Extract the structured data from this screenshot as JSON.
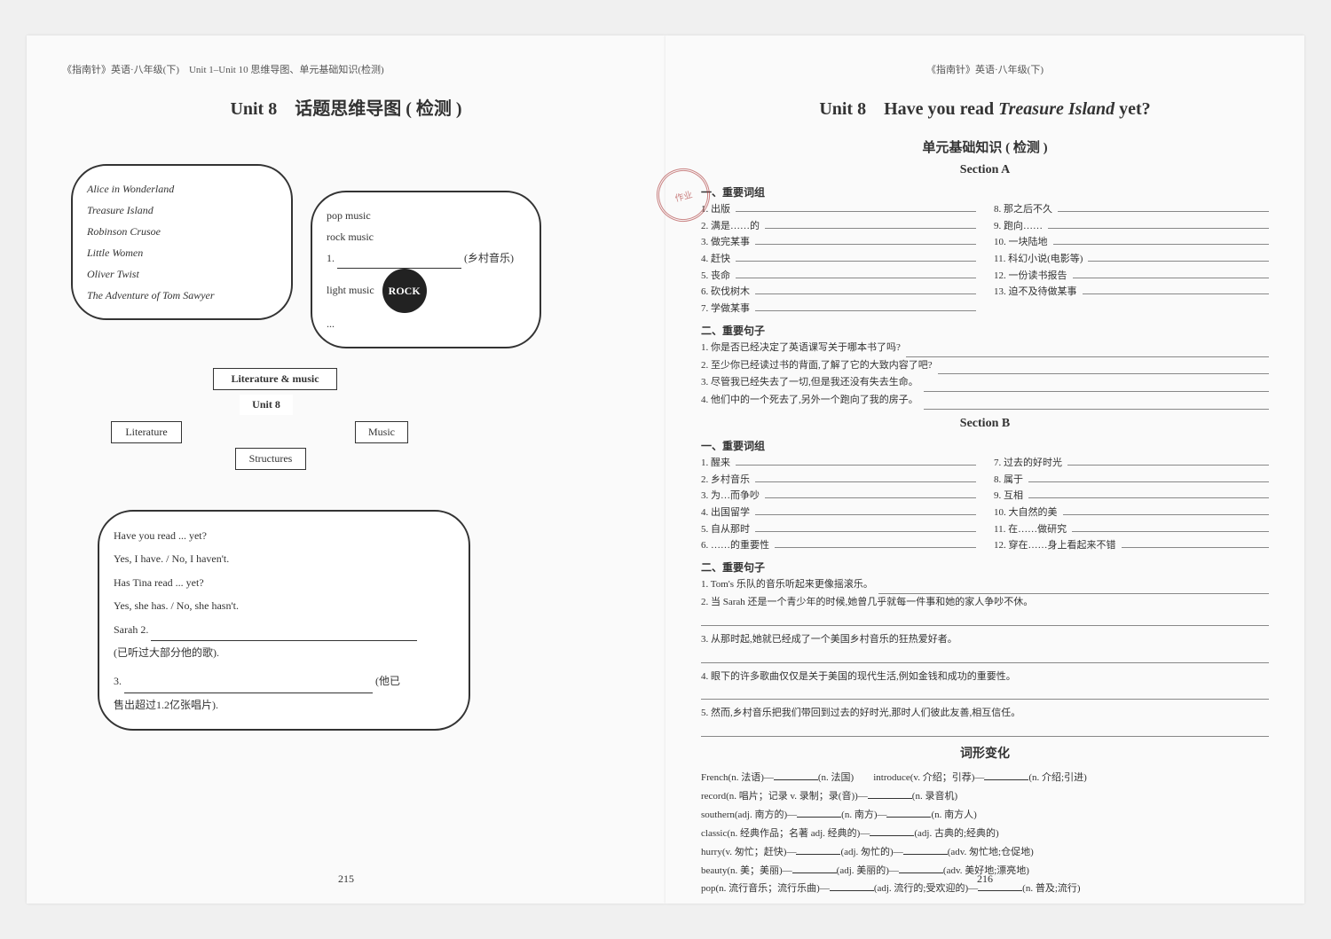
{
  "left": {
    "header": "《指南针》英语·八年级(下)　Unit 1–Unit 10 思维导图、单元基础知识(检测)",
    "title": "Unit 8　话题思维导图 ( 检测 )",
    "books": [
      "Alice in Wonderland",
      "Treasure Island",
      "Robinson Crusoe",
      "Little Women",
      "Oliver Twist",
      "The Adventure of Tom Sawyer"
    ],
    "music": {
      "items": [
        "pop music",
        "rock music"
      ],
      "blank_label": "1.",
      "blank_hint": "(乡村音乐)",
      "tail": [
        "light music",
        "..."
      ]
    },
    "center": {
      "litmusic": "Literature & music",
      "unit": "Unit 8",
      "literature": "Literature",
      "music": "Music",
      "structures": "Structures"
    },
    "sentences": {
      "lines": [
        "Have you read ... yet?",
        "Yes, I have. / No, I haven't.",
        "Has Tina read ... yet?",
        "Yes, she has. / No, she hasn't."
      ],
      "blank2_label": "Sarah 2.",
      "blank2_hint": "(已听过大部分他的歌).",
      "blank3_label": "3.",
      "blank3_hint": "(他已",
      "blank3_cont": "售出超过1.2亿张唱片)."
    },
    "rock_label": "ROCK",
    "page_num": "215"
  },
  "right": {
    "header": "《指南针》英语·八年级(下)",
    "title_pre": "Unit 8　Have you read ",
    "title_italic": "Treasure Island",
    "title_post": " yet?",
    "subtitle": "单元基础知识 ( 检测 )",
    "stamp": "作业",
    "sectionA": {
      "title": "Section A",
      "phrases_head": "一、重要词组",
      "left_items": [
        "1. 出版",
        "2. 满是……的",
        "3. 做完某事",
        "4. 赶快",
        "5. 丧命",
        "6. 砍伐树木",
        "7. 学做某事"
      ],
      "right_items": [
        "8. 那之后不久",
        "9. 跑向……",
        "10. 一块陆地",
        "11. 科幻小说(电影等)",
        "12. 一份读书报告",
        "13. 迫不及待做某事"
      ],
      "sent_head": "二、重要句子",
      "sentences": [
        "1. 你是否已经决定了英语课写关于哪本书了吗?",
        "2. 至少你已经读过书的背面,了解了它的大致内容了吧?",
        "3. 尽管我已经失去了一切,但是我还没有失去生命。",
        "4. 他们中的一个死去了,另外一个跑向了我的房子。"
      ]
    },
    "sectionB": {
      "title": "Section B",
      "phrases_head": "一、重要词组",
      "left_items": [
        "1. 醒来",
        "2. 乡村音乐",
        "3. 为…而争吵",
        "4. 出国留学",
        "5. 自从那时",
        "6. ……的重要性"
      ],
      "right_items": [
        "7. 过去的好时光",
        "8. 属于",
        "9. 互相",
        "10. 大自然的美",
        "11. 在……做研究",
        "12. 穿在……身上看起来不错"
      ],
      "sent_head": "二、重要句子",
      "sentences": [
        "1. Tom's 乐队的音乐听起来更像摇滚乐。",
        "2. 当 Sarah 还是一个青少年的时候,她曾几乎就每一件事和她的家人争吵不休。",
        "3. 从那时起,她就已经成了一个美国乡村音乐的狂热爱好者。",
        "4. 眼下的许多歌曲仅仅是关于美国的现代生活,例如金钱和成功的重要性。",
        "5. 然而,乡村音乐把我们带回到过去的好时光,那时人们彼此友善,相互信任。"
      ]
    },
    "wordforms": {
      "title": "词形变化",
      "lines": [
        {
          "pre": "French(n. 法语)—",
          "post": "(n. 法国)",
          "extra_pre": "introduce(v. 介绍；引荐)—",
          "extra_post": "(n. 介绍;引进)"
        },
        {
          "pre": "record(n. 唱片；记录 v. 录制；录(音))—",
          "post": "(n. 录音机)"
        },
        {
          "pre": "southern(adj. 南方的)—",
          "post": "(n. 南方)—",
          "extra_post": "(n. 南方人)"
        },
        {
          "pre": "classic(n. 经典作品；名著 adj. 经典的)—",
          "post": "(adj. 古典的;经典的)"
        },
        {
          "pre": "hurry(v. 匆忙；赶快)—",
          "post": "(adj. 匆忙的)—",
          "extra_post": "(adv. 匆忙地;仓促地)"
        },
        {
          "pre": "beauty(n. 美；美丽)—",
          "post": "(adj. 美丽的)—",
          "extra_post": "(adv. 美好地;漂亮地)"
        },
        {
          "pre": "pop(n. 流行音乐；流行乐曲)—",
          "post": "(adj. 流行的;受欢迎的)—",
          "extra_post": "(n. 普及;流行)"
        }
      ]
    },
    "page_num": "216"
  }
}
